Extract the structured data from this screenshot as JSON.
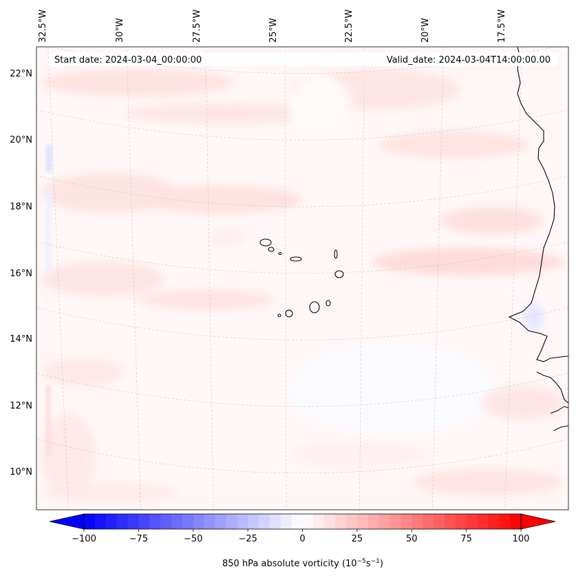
{
  "map": {
    "start_date_label": "Start date: 2024-03-04_00:00:00",
    "valid_date_label": "Valid_date: 2024-03-04T14:00:00.00",
    "lon_labels": [
      "32.5°W",
      "30°W",
      "27.5°W",
      "25°W",
      "22.5°W",
      "20°W",
      "17.5°W"
    ],
    "lat_labels": [
      "22°N",
      "20°N",
      "18°N",
      "16°N",
      "14°N",
      "12°N",
      "10°N"
    ],
    "extent": {
      "lon_min": -32.7,
      "lon_max": -16.2,
      "lat_min": 8.9,
      "lat_max": 22.8
    },
    "field": "850 hPa absolute vorticity",
    "gridlines": true
  },
  "colorbar": {
    "label": "850 hPa absolute vorticity (10",
    "label_exp1": "−5",
    "label_mid": "s",
    "label_exp2": "−1",
    "label_end": ")",
    "ticks": [
      "−100",
      "−75",
      "−50",
      "−25",
      "0",
      "25",
      "50",
      "75",
      "100"
    ],
    "tick_values": [
      -100,
      -75,
      -50,
      -25,
      0,
      25,
      50,
      75,
      100
    ],
    "min": -100,
    "max": 100,
    "levels": 41,
    "extend": "both",
    "cmap": "bwr",
    "color_low": "#0000ff",
    "color_mid": "#ffffff",
    "color_high": "#ff0000"
  }
}
